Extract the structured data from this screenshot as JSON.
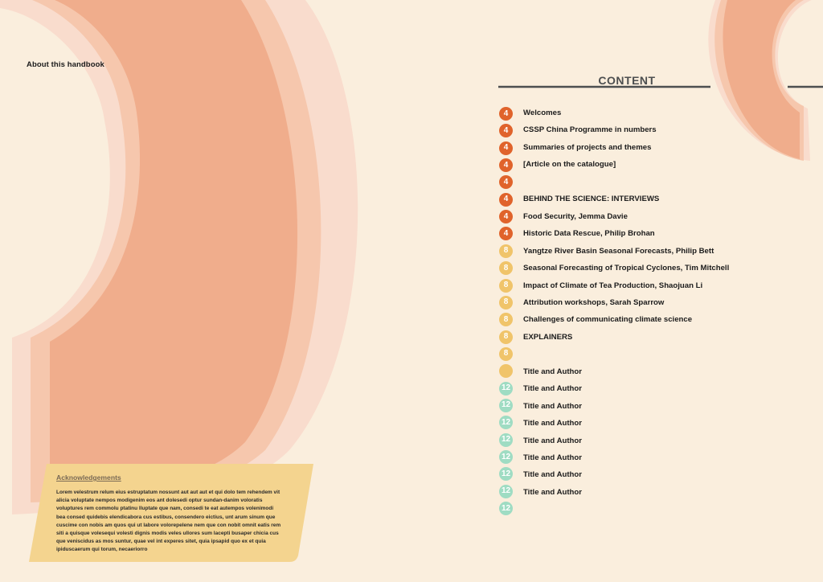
{
  "colors": {
    "background": "#faeedd",
    "orange_badge": "#e0632b",
    "yellow_badge": "#f0c46a",
    "green_badge": "#9fdcc3",
    "arc_dark": "#f0ad8c",
    "arc_mid": "#f6c7ad",
    "arc_light": "#f9dccd",
    "acknowledgements_fill": "#f4d48f"
  },
  "left_page": {
    "heading": "About this handbook",
    "acknowledgements": {
      "title": "Acknowledgements",
      "body": "Lorem velestrum relum eius estruptatum nossunt aut aut aut et qui dolo tem rehendem vit alicia voluptate nempos modigenim eos ant dolesedi optur sundan-danim voloratis voluptures rem commolu ptatinu lluptate que nam, consedi te eat autempos volenimodi bea consed quidebis elendicabora cus estibus, consendero eictius, unt arum sinum que cuscime con nobis am quos qui ut labore volorepelene nem que con nobit omnit eatis rem siti a quisque volesequi volesti dignis modis veles ullores sum lacepti busaper chicia cus que veniscidus as mos suntur, quae vel int experes sitet, quia ipsapid quo ex et quia ipiduscaerum qui torum, necaeriorro"
    }
  },
  "right_page": {
    "title": "CONTENT",
    "badges": [
      {
        "label": "4",
        "color": "orange"
      },
      {
        "label": "4",
        "color": "orange"
      },
      {
        "label": "4",
        "color": "orange"
      },
      {
        "label": "4",
        "color": "orange"
      },
      {
        "label": "4",
        "color": "orange"
      },
      {
        "label": "4",
        "color": "orange"
      },
      {
        "label": "4",
        "color": "orange"
      },
      {
        "label": "4",
        "color": "orange"
      },
      {
        "label": "8",
        "color": "yellow"
      },
      {
        "label": "8",
        "color": "yellow"
      },
      {
        "label": "8",
        "color": "yellow"
      },
      {
        "label": "8",
        "color": "yellow"
      },
      {
        "label": "8",
        "color": "yellow"
      },
      {
        "label": "8",
        "color": "yellow"
      },
      {
        "label": "8",
        "color": "yellow"
      },
      {
        "label": "",
        "color": "yellow"
      },
      {
        "label": "12",
        "color": "green"
      },
      {
        "label": "12",
        "color": "green"
      },
      {
        "label": "12",
        "color": "green"
      },
      {
        "label": "12",
        "color": "green"
      },
      {
        "label": "12",
        "color": "green"
      },
      {
        "label": "12",
        "color": "green"
      },
      {
        "label": "12",
        "color": "green"
      },
      {
        "label": "12",
        "color": "green"
      }
    ],
    "entries": [
      "Welcomes",
      "CSSP China Programme in numbers",
      "Summaries of projects and themes",
      "[Article on the catalogue]",
      "",
      "BEHIND THE SCIENCE: INTERVIEWS",
      "Food Security, Jemma Davie",
      "Historic Data Rescue, Philip Brohan",
      "Yangtze River Basin Seasonal Forecasts, Philip Bett",
      "Seasonal Forecasting of Tropical Cyclones, Tim Mitchell",
      "Impact of Climate of Tea Production, Shaojuan Li",
      "Attribution workshops, Sarah Sparrow",
      "Challenges of communicating climate science",
      "EXPLAINERS",
      "",
      "Title and Author",
      "Title and Author",
      "Title and Author",
      "Title and Author",
      "Title and Author",
      "Title and Author",
      "Title and Author",
      "Title and Author"
    ]
  }
}
